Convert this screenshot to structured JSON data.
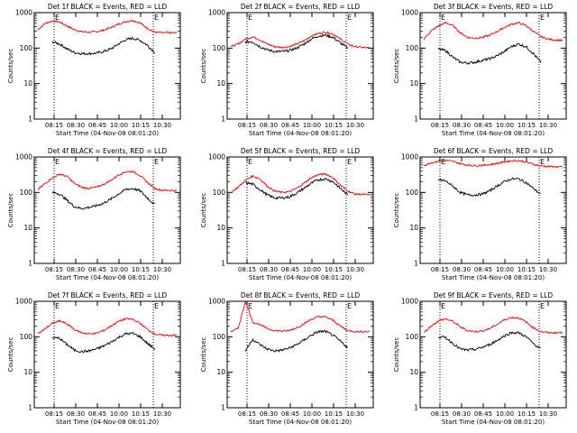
{
  "figure": {
    "ylabel": "Counts/sec",
    "xlabel": "Start Time (04-Nov-08 08:01:20)",
    "marker_label": "E",
    "y_ticks": [
      "1",
      "10",
      "100",
      "1000"
    ],
    "x_ticks": [
      "08:15",
      "08:30",
      "08:45",
      "10:00",
      "10:15",
      "10:30"
    ]
  },
  "colors": {
    "events": "#000000",
    "lld": "#ff0000",
    "axes": "#000000"
  },
  "chart_data": [
    {
      "type": "line",
      "title": "Det 1f BLACK = Events, RED = LLD",
      "x": [
        "08:05",
        "08:10",
        "08:15",
        "08:20",
        "08:25",
        "08:30",
        "08:35",
        "08:40",
        "08:45",
        "08:50",
        "08:55",
        "10:00",
        "10:05",
        "10:10",
        "10:15",
        "10:20",
        "10:25",
        "10:30",
        "10:35",
        "10:40"
      ],
      "ylim": [
        1,
        1000
      ],
      "log_y": true,
      "series": [
        {
          "name": "LLD",
          "values": [
            330,
            500,
            580,
            540,
            420,
            330,
            290,
            280,
            290,
            320,
            380,
            470,
            560,
            600,
            510,
            360,
            280,
            270,
            270,
            270
          ]
        },
        {
          "name": "Events",
          "values": [
            null,
            null,
            150,
            130,
            95,
            75,
            70,
            70,
            72,
            80,
            95,
            130,
            170,
            190,
            165,
            120,
            75,
            null,
            null,
            null
          ]
        }
      ]
    },
    {
      "type": "line",
      "title": "Det 2f BLACK = Events, RED = LLD",
      "x": [
        "08:05",
        "08:10",
        "08:15",
        "08:20",
        "08:25",
        "08:30",
        "08:35",
        "08:40",
        "08:45",
        "08:50",
        "08:55",
        "10:00",
        "10:05",
        "10:10",
        "10:15",
        "10:20",
        "10:25",
        "10:30",
        "10:35",
        "10:40"
      ],
      "ylim": [
        1,
        1000
      ],
      "log_y": true,
      "series": [
        {
          "name": "LLD",
          "values": [
            110,
            130,
            180,
            210,
            170,
            130,
            110,
            105,
            110,
            130,
            160,
            220,
            260,
            280,
            250,
            180,
            130,
            110,
            105,
            100
          ]
        },
        {
          "name": "Events",
          "values": [
            null,
            null,
            150,
            150,
            110,
            90,
            80,
            80,
            85,
            100,
            130,
            180,
            220,
            230,
            200,
            140,
            100,
            null,
            null,
            null
          ]
        }
      ]
    },
    {
      "type": "line",
      "title": "Det 3f BLACK = Events, RED = LLD",
      "x": [
        "08:05",
        "08:10",
        "08:15",
        "08:20",
        "08:25",
        "08:30",
        "08:35",
        "08:40",
        "08:45",
        "08:50",
        "08:55",
        "10:00",
        "10:05",
        "10:10",
        "10:15",
        "10:20",
        "10:25",
        "10:30",
        "10:35",
        "10:40"
      ],
      "ylim": [
        1,
        1000
      ],
      "log_y": true,
      "series": [
        {
          "name": "LLD",
          "values": [
            180,
            300,
            420,
            520,
            430,
            270,
            200,
            190,
            200,
            230,
            290,
            380,
            470,
            520,
            430,
            300,
            210,
            180,
            170,
            165
          ]
        },
        {
          "name": "Events",
          "values": [
            null,
            null,
            95,
            85,
            55,
            40,
            38,
            40,
            45,
            50,
            60,
            80,
            110,
            130,
            110,
            70,
            40,
            null,
            null,
            null
          ]
        }
      ]
    },
    {
      "type": "line",
      "title": "Det 4f BLACK = Events, RED = LLD",
      "x": [
        "08:05",
        "08:10",
        "08:15",
        "08:20",
        "08:25",
        "08:30",
        "08:35",
        "08:40",
        "08:45",
        "08:50",
        "08:55",
        "10:00",
        "10:05",
        "10:10",
        "10:15",
        "10:20",
        "10:25",
        "10:30",
        "10:35",
        "10:40"
      ],
      "ylim": [
        1,
        1000
      ],
      "log_y": true,
      "series": [
        {
          "name": "LLD",
          "values": [
            120,
            180,
            260,
            330,
            280,
            180,
            140,
            130,
            140,
            170,
            220,
            310,
            380,
            390,
            300,
            190,
            130,
            115,
            115,
            110
          ]
        },
        {
          "name": "Events",
          "values": [
            null,
            null,
            100,
            90,
            60,
            40,
            35,
            38,
            42,
            50,
            65,
            90,
            120,
            130,
            110,
            70,
            45,
            null,
            null,
            null
          ]
        }
      ]
    },
    {
      "type": "line",
      "title": "Det 5f BLACK = Events, RED = LLD",
      "x": [
        "08:05",
        "08:10",
        "08:15",
        "08:20",
        "08:25",
        "08:30",
        "08:35",
        "08:40",
        "08:45",
        "08:50",
        "08:55",
        "10:00",
        "10:05",
        "10:10",
        "10:15",
        "10:20",
        "10:25",
        "10:30",
        "10:35",
        "10:40"
      ],
      "ylim": [
        1,
        1000
      ],
      "log_y": true,
      "series": [
        {
          "name": "LLD",
          "values": [
            100,
            140,
            220,
            290,
            240,
            150,
            110,
            100,
            105,
            130,
            180,
            260,
            320,
            330,
            260,
            160,
            110,
            90,
            88,
            85
          ]
        },
        {
          "name": "Events",
          "values": [
            null,
            null,
            190,
            170,
            120,
            85,
            70,
            70,
            75,
            95,
            130,
            180,
            230,
            240,
            200,
            130,
            85,
            null,
            null,
            null
          ]
        }
      ]
    },
    {
      "type": "line",
      "title": "Det 6f BLACK = Events, RED = LLD",
      "x": [
        "08:05",
        "08:10",
        "08:15",
        "08:20",
        "08:25",
        "08:30",
        "08:35",
        "08:40",
        "08:45",
        "08:50",
        "08:55",
        "10:00",
        "10:05",
        "10:10",
        "10:15",
        "10:20",
        "10:25",
        "10:30",
        "10:35",
        "10:40"
      ],
      "ylim": [
        1,
        1000
      ],
      "log_y": true,
      "series": [
        {
          "name": "LLD",
          "values": [
            580,
            680,
            760,
            800,
            750,
            650,
            590,
            570,
            580,
            610,
            660,
            720,
            780,
            790,
            720,
            620,
            560,
            540,
            530,
            520
          ]
        },
        {
          "name": "Events",
          "values": [
            null,
            null,
            230,
            210,
            150,
            100,
            85,
            85,
            90,
            110,
            150,
            200,
            240,
            240,
            190,
            130,
            90,
            null,
            null,
            null
          ]
        }
      ]
    },
    {
      "type": "line",
      "title": "Det 7f BLACK = Events, RED = LLD",
      "x": [
        "08:05",
        "08:10",
        "08:15",
        "08:20",
        "08:25",
        "08:30",
        "08:35",
        "08:40",
        "08:45",
        "08:50",
        "08:55",
        "10:00",
        "10:05",
        "10:10",
        "10:15",
        "10:20",
        "10:25",
        "10:30",
        "10:35",
        "10:40"
      ],
      "ylim": [
        1,
        1000
      ],
      "log_y": true,
      "series": [
        {
          "name": "LLD",
          "values": [
            120,
            170,
            240,
            280,
            230,
            160,
            130,
            120,
            125,
            150,
            200,
            270,
            320,
            310,
            240,
            160,
            120,
            110,
            110,
            110
          ]
        },
        {
          "name": "Events",
          "values": [
            null,
            null,
            95,
            90,
            60,
            42,
            38,
            40,
            45,
            55,
            70,
            95,
            120,
            125,
            100,
            65,
            45,
            null,
            null,
            null
          ]
        }
      ]
    },
    {
      "type": "line",
      "title": "Det 8f BLACK = Events, RED = LLD",
      "x": [
        "08:05",
        "08:10",
        "08:15",
        "08:20",
        "08:25",
        "08:30",
        "08:35",
        "08:40",
        "08:45",
        "08:50",
        "08:55",
        "10:00",
        "10:05",
        "10:10",
        "10:15",
        "10:20",
        "10:25",
        "10:30",
        "10:35",
        "10:40"
      ],
      "ylim": [
        1,
        1000
      ],
      "log_y": true,
      "series": [
        {
          "name": "LLD",
          "values": [
            140,
            170,
            1000,
            260,
            220,
            170,
            150,
            145,
            150,
            180,
            230,
            310,
            370,
            360,
            290,
            200,
            150,
            140,
            140,
            140
          ]
        },
        {
          "name": "Events",
          "values": [
            null,
            null,
            40,
            85,
            60,
            45,
            40,
            42,
            48,
            60,
            80,
            110,
            140,
            140,
            110,
            75,
            50,
            null,
            null,
            null
          ]
        }
      ]
    },
    {
      "type": "line",
      "title": "Det 9f BLACK = Events, RED = LLD",
      "x": [
        "08:05",
        "08:10",
        "08:15",
        "08:20",
        "08:25",
        "08:30",
        "08:35",
        "08:40",
        "08:45",
        "08:50",
        "08:55",
        "10:00",
        "10:05",
        "10:10",
        "10:15",
        "10:20",
        "10:25",
        "10:30",
        "10:35",
        "10:40"
      ],
      "ylim": [
        1,
        1000
      ],
      "log_y": true,
      "series": [
        {
          "name": "LLD",
          "values": [
            130,
            200,
            280,
            320,
            270,
            190,
            150,
            140,
            145,
            170,
            220,
            300,
            350,
            340,
            260,
            180,
            140,
            130,
            130,
            130
          ]
        },
        {
          "name": "Events",
          "values": [
            null,
            null,
            100,
            95,
            65,
            45,
            42,
            44,
            50,
            60,
            78,
            105,
            130,
            130,
            100,
            65,
            45,
            null,
            null,
            null
          ]
        }
      ]
    }
  ]
}
